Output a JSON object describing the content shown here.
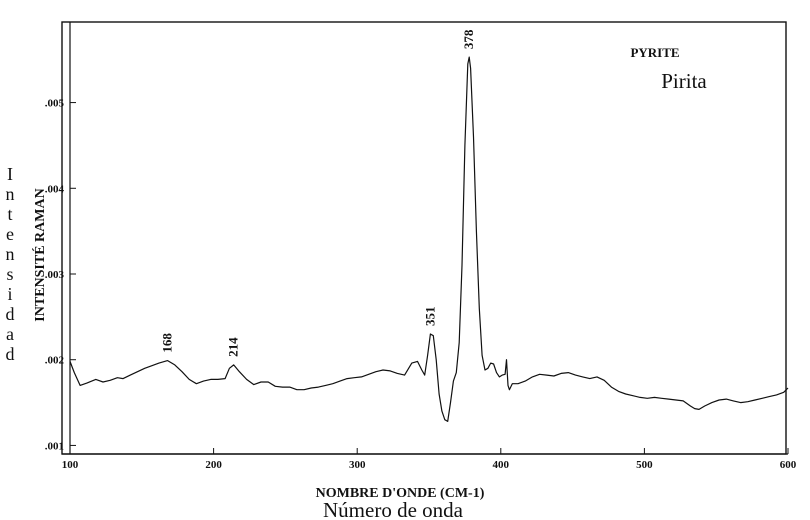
{
  "chart_data": {
    "type": "line",
    "title": "",
    "legend_lines": [
      "PYRITE",
      "Pirita"
    ],
    "xlabel": "NOMBRE D'ONDE (CM-1)",
    "xlabel_es": "Número de onda",
    "ylabel": "INTENSITÉ RAMAN",
    "ylabel_es": "Intensidad",
    "xlim": [
      100,
      600
    ],
    "ylim": [
      0.0009,
      0.00594
    ],
    "xticks": [
      100,
      200,
      300,
      400,
      500,
      600
    ],
    "xtick_labels": [
      "100",
      "200",
      "300",
      "400",
      "500",
      "600"
    ],
    "yticks": [
      0.001,
      0.002,
      0.003,
      0.004,
      0.005
    ],
    "ytick_labels": [
      ".001",
      ".002",
      ".003",
      ".004",
      ".005"
    ],
    "grid": false,
    "line_color": "#111111",
    "peaks": [
      {
        "x": 168,
        "label": "168"
      },
      {
        "x": 214,
        "label": "214"
      },
      {
        "x": 351,
        "label": "351"
      },
      {
        "x": 378,
        "label": "378"
      }
    ],
    "series": [
      {
        "x": [
          100,
          103,
          107,
          112,
          118,
          123,
          128,
          133,
          137,
          142,
          147,
          152,
          157,
          162,
          168,
          173,
          178,
          183,
          188,
          193,
          198,
          203,
          208,
          211,
          214,
          218,
          223,
          228,
          233,
          238,
          243,
          248,
          253,
          258,
          263,
          268,
          273,
          278,
          283,
          288,
          293,
          298,
          303,
          308,
          313,
          318,
          323,
          328,
          333,
          338,
          342,
          345,
          347,
          349,
          351,
          353,
          355,
          357,
          359,
          361,
          363,
          365,
          367,
          369,
          371,
          373,
          375,
          377,
          378,
          379,
          381,
          383,
          385,
          387,
          389,
          391,
          393,
          395,
          397,
          399,
          401,
          403,
          404,
          405,
          406,
          408,
          412,
          417,
          422,
          427,
          432,
          437,
          442,
          447,
          452,
          457,
          462,
          467,
          472,
          477,
          482,
          487,
          492,
          497,
          502,
          507,
          512,
          517,
          522,
          527,
          532,
          535,
          538,
          542,
          547,
          552,
          557,
          562,
          567,
          572,
          577,
          582,
          587,
          592,
          597,
          600
        ],
        "y": [
          0.00198,
          0.00185,
          0.0017,
          0.00173,
          0.00177,
          0.00174,
          0.00176,
          0.00179,
          0.00178,
          0.00182,
          0.00186,
          0.0019,
          0.00193,
          0.00196,
          0.00199,
          0.00194,
          0.00186,
          0.00177,
          0.00172,
          0.00175,
          0.00177,
          0.00177,
          0.00178,
          0.0019,
          0.00194,
          0.00186,
          0.00177,
          0.00171,
          0.00174,
          0.00174,
          0.00169,
          0.00168,
          0.00168,
          0.00165,
          0.00165,
          0.00167,
          0.00168,
          0.0017,
          0.00172,
          0.00175,
          0.00178,
          0.00179,
          0.0018,
          0.00183,
          0.00186,
          0.00188,
          0.00187,
          0.00184,
          0.00182,
          0.00196,
          0.00198,
          0.00188,
          0.00182,
          0.00205,
          0.0023,
          0.00228,
          0.002,
          0.0016,
          0.0014,
          0.0013,
          0.00128,
          0.0015,
          0.00175,
          0.00185,
          0.0022,
          0.0031,
          0.0045,
          0.00545,
          0.00553,
          0.0054,
          0.0046,
          0.0035,
          0.0026,
          0.00205,
          0.00188,
          0.0019,
          0.00196,
          0.00195,
          0.00185,
          0.0018,
          0.00182,
          0.00183,
          0.002,
          0.0017,
          0.00165,
          0.00172,
          0.00172,
          0.00175,
          0.0018,
          0.00183,
          0.00182,
          0.00181,
          0.00184,
          0.00185,
          0.00182,
          0.0018,
          0.00178,
          0.0018,
          0.00176,
          0.00168,
          0.00163,
          0.0016,
          0.00158,
          0.00156,
          0.00155,
          0.00156,
          0.00155,
          0.00154,
          0.00153,
          0.00152,
          0.00146,
          0.00143,
          0.00142,
          0.00146,
          0.0015,
          0.00153,
          0.00154,
          0.00152,
          0.0015,
          0.00151,
          0.00153,
          0.00155,
          0.00157,
          0.00159,
          0.00162,
          0.00167
        ]
      }
    ]
  }
}
